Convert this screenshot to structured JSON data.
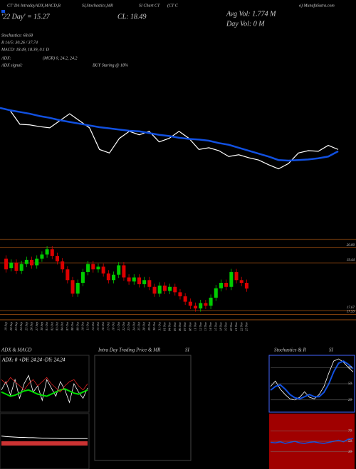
{
  "header": {
    "texts": [
      "CT 'D4 IntradayADX,MACD,B",
      "SI,Stochastics,MR",
      "SI Chart CT",
      "(CT C",
      "o) MunafaSutra.com",
      "'22 Day' = 15.27",
      "CL: 18.49",
      "Avg Vol: 1.774 M",
      "Day Vol: 0  M",
      "Stochastics: 68.68",
      "R 14/5: 30.26 / 37.74",
      "MACD: 18.49, 18.39, 0.1 D",
      "ADX:",
      "(MGR) 0, 24.2, 24.2",
      "ADX  signal:",
      "BUY Staring @ 18%"
    ]
  },
  "chart_data": [
    {
      "type": "line",
      "ylim": [
        16.5,
        20.5
      ],
      "series": [
        {
          "color": "#ffffff",
          "values": [
            18.66,
            18.62,
            18.38,
            18.37,
            18.34,
            18.32,
            18.44,
            18.56,
            18.44,
            18.32,
            17.95,
            17.89,
            18.14,
            18.26,
            18.2,
            18.26,
            18.08,
            18.14,
            18.26,
            18.14,
            17.95,
            17.98,
            17.93,
            17.83,
            17.86,
            17.81,
            17.77,
            17.69,
            17.62,
            17.71,
            17.89,
            17.93,
            17.92,
            18.02,
            17.95
          ]
        },
        {
          "color": "#1150e0",
          "values": [
            18.66,
            18.62,
            18.59,
            18.56,
            18.52,
            18.49,
            18.45,
            18.42,
            18.39,
            18.36,
            18.33,
            18.31,
            18.29,
            18.27,
            18.26,
            18.23,
            18.2,
            18.18,
            18.15,
            18.13,
            18.12,
            18.1,
            18.06,
            18.03,
            17.98,
            17.93,
            17.88,
            17.83,
            17.77,
            17.76,
            17.77,
            17.78,
            17.8,
            17.83,
            17.92
          ]
        }
      ]
    },
    {
      "type": "candlestick",
      "ylim": [
        17.33,
        20.31
      ],
      "yticks": [
        {
          "value": 20,
          "label": "20.00"
        },
        19.44,
        17.67,
        17.53
      ],
      "categories": [
        "19 Sep",
        "20 Sep",
        "23 Sep",
        "24 Sep",
        "25 Sep",
        "26 Sep",
        "27 Sep",
        "30 Sep",
        "01 Oct",
        "02 Oct",
        "03 Oct",
        "04 Oct",
        "07 Oct",
        "08 Oct",
        "09 Oct",
        "10 Oct",
        "11 Oct",
        "14 Oct",
        "15 Oct",
        "16 Oct",
        "17 Oct",
        "18 Oct",
        "21 Oct",
        "22 Oct",
        "23 Oct",
        "24 Oct",
        "25 Oct",
        "28 Oct",
        "29 Oct",
        "30 Oct",
        "31 Oct",
        "01 Nov",
        "04 Nov",
        "05 Nov",
        "06 Nov",
        "07 Nov",
        "08 Nov",
        "11 Nov",
        "12 Nov",
        "13 Nov",
        "14 Nov",
        "15 Nov",
        "18 Nov",
        "19 Nov",
        "20 Nov",
        "21 Nov",
        "22 Nov",
        "25 Nov"
      ],
      "open": [
        19.6,
        19.25,
        19.45,
        19.15,
        19.4,
        19.55,
        19.35,
        19.6,
        19.75,
        19.95,
        19.7,
        19.5,
        19.2,
        18.8,
        18.3,
        18.7,
        19.1,
        19.4,
        19.2,
        19.3,
        19.05,
        18.8,
        19.0,
        19.35,
        18.9,
        18.75,
        18.9,
        18.65,
        18.8,
        18.55,
        18.3,
        18.6,
        18.4,
        18.55,
        18.35,
        18.2,
        18.0,
        17.85,
        17.75,
        17.95,
        17.85,
        18.15,
        18.5,
        18.7,
        18.55,
        19.1,
        18.8,
        18.7
      ],
      "high": [
        19.72,
        19.57,
        19.57,
        19.52,
        19.67,
        19.67,
        19.72,
        19.87,
        20.07,
        20.07,
        19.82,
        19.62,
        19.32,
        18.92,
        18.82,
        19.22,
        19.52,
        19.52,
        19.42,
        19.42,
        19.17,
        19.12,
        19.47,
        19.47,
        19.02,
        19.02,
        19.02,
        18.92,
        18.92,
        18.67,
        18.72,
        18.72,
        18.67,
        18.67,
        18.47,
        18.32,
        18.12,
        17.97,
        18.07,
        18.07,
        18.27,
        18.62,
        18.82,
        18.82,
        19.22,
        19.22,
        18.92,
        18.82
      ],
      "low": [
        19.08,
        19.13,
        19.03,
        19.03,
        19.28,
        19.23,
        19.23,
        19.48,
        19.63,
        19.58,
        19.38,
        19.08,
        18.68,
        18.18,
        18.18,
        18.58,
        18.98,
        19.08,
        19.08,
        18.93,
        18.68,
        18.68,
        18.88,
        18.78,
        18.63,
        18.63,
        18.53,
        18.53,
        18.43,
        18.18,
        18.18,
        18.28,
        18.28,
        18.23,
        18.08,
        17.88,
        17.73,
        17.63,
        17.63,
        17.73,
        17.73,
        18.03,
        18.38,
        18.43,
        18.43,
        18.68,
        18.58,
        18.37
      ],
      "close": [
        19.2,
        19.45,
        19.15,
        19.4,
        19.55,
        19.35,
        19.6,
        19.75,
        19.95,
        19.7,
        19.5,
        19.2,
        18.8,
        18.3,
        18.7,
        19.1,
        19.4,
        19.2,
        19.3,
        19.05,
        18.8,
        19.0,
        19.35,
        18.9,
        18.75,
        18.9,
        18.65,
        18.8,
        18.55,
        18.3,
        18.6,
        18.4,
        18.55,
        18.35,
        18.2,
        18.0,
        17.85,
        17.75,
        17.95,
        17.85,
        18.15,
        18.5,
        18.7,
        18.55,
        19.1,
        18.8,
        18.7,
        18.49
      ]
    },
    {
      "type": "line",
      "title": "ADX & MACD",
      "subtitle": "ADX: 0  +DY: 24.24  -DY: 24.24",
      "ylim": [
        0,
        50
      ],
      "series": [
        {
          "color": "#ffffff",
          "values": [
            20,
            28,
            15,
            30,
            12,
            26,
            34,
            18,
            24,
            10,
            30,
            22,
            14,
            28,
            20,
            8,
            26,
            18,
            12,
            22
          ]
        },
        {
          "color": "#00dd00",
          "values": [
            18,
            16,
            14,
            15,
            17,
            19,
            20,
            18,
            16,
            15,
            14,
            16,
            18,
            20,
            21,
            19,
            17,
            16,
            18,
            20
          ]
        },
        {
          "color": "#dd2222",
          "values": [
            30,
            26,
            32,
            28,
            24,
            20,
            26,
            30,
            24,
            28,
            32,
            26,
            22,
            18,
            24,
            28,
            30,
            24,
            20,
            26
          ]
        }
      ]
    },
    {
      "type": "line",
      "ylim": [
        -1,
        1
      ],
      "series": [
        {
          "color": "#ffffff",
          "values": [
            0.2,
            0.18,
            0.17,
            0.16,
            0.15,
            0.15,
            0.14,
            0.14,
            0.13,
            0.12,
            0.12,
            0.11,
            0.11,
            0.1,
            0.1,
            0.1,
            0.1,
            0.1,
            0.1,
            0.1
          ]
        }
      ]
    },
    {
      "type": "line",
      "title": "Intra Day Trading Price & MR",
      "subtitle": "SI"
    },
    {
      "type": "line",
      "title": "Stochastics & R",
      "subtitle": "SI",
      "ylim": [
        0,
        100
      ],
      "yticks": [
        20,
        50,
        80
      ],
      "series": [
        {
          "color": "#ffffff",
          "values": [
            45,
            55,
            40,
            30,
            22,
            20,
            25,
            35,
            25,
            22,
            30,
            45,
            70,
            92,
            96,
            90,
            80,
            72
          ]
        },
        {
          "color": "#1150e0",
          "values": [
            38,
            45,
            48,
            40,
            30,
            24,
            22,
            26,
            30,
            26,
            26,
            34,
            50,
            72,
            88,
            92,
            86,
            78
          ]
        }
      ]
    },
    {
      "type": "line",
      "ylim": [
        0,
        100
      ],
      "yticks": [
        30,
        50,
        70
      ],
      "series": [
        {
          "color": "#1150e0",
          "values": [
            48,
            47,
            49,
            46,
            48,
            50,
            47,
            46,
            48,
            49,
            47,
            46,
            48,
            50,
            52,
            49,
            54,
            55
          ]
        }
      ]
    }
  ]
}
